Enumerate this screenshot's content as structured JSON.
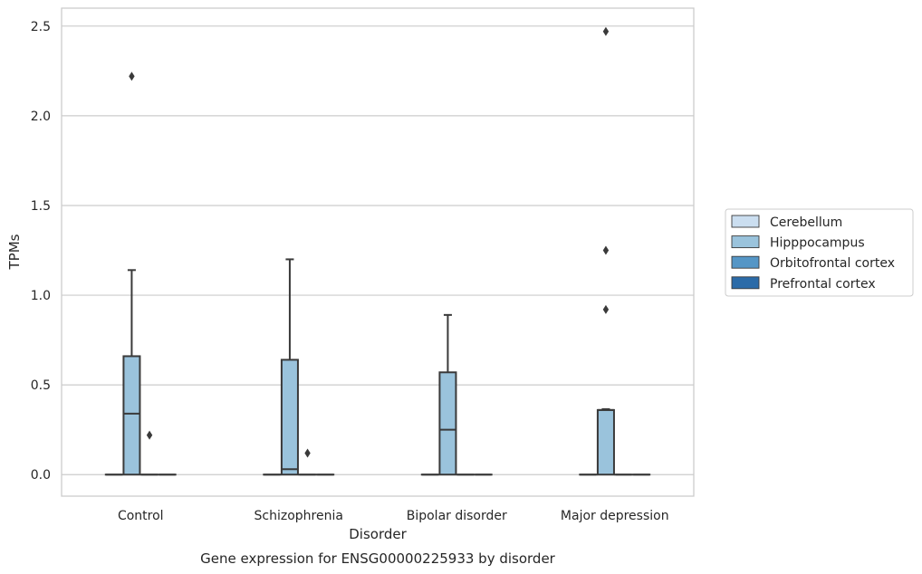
{
  "chart_data": {
    "type": "box",
    "title": "",
    "caption": "Gene expression for ENSG00000225933 by disorder",
    "xlabel": "Disorder",
    "ylabel": "TPMs",
    "categories": [
      "Control",
      "Schizophrenia",
      "Bipolar disorder",
      "Major depression"
    ],
    "ylim": [
      -0.12,
      2.6
    ],
    "yticks": [
      "0.0",
      "0.5",
      "1.0",
      "1.5",
      "2.0",
      "2.5"
    ],
    "grid": true,
    "legend_position": "right",
    "series": [
      {
        "name": "Cerebellum",
        "color": "#cbdef0",
        "boxes": [
          {
            "q1": 0,
            "median": 0,
            "q3": 0,
            "whisker_low": 0,
            "whisker_high": 0,
            "outliers": []
          },
          {
            "q1": 0,
            "median": 0,
            "q3": 0,
            "whisker_low": 0,
            "whisker_high": 0,
            "outliers": []
          },
          {
            "q1": 0,
            "median": 0,
            "q3": 0,
            "whisker_low": 0,
            "whisker_high": 0,
            "outliers": []
          },
          {
            "q1": 0,
            "median": 0,
            "q3": 0,
            "whisker_low": 0,
            "whisker_high": 0,
            "outliers": []
          }
        ]
      },
      {
        "name": "Hipppocampus",
        "color": "#9ac3dc",
        "boxes": [
          {
            "q1": 0,
            "median": 0.34,
            "q3": 0.66,
            "whisker_low": 0,
            "whisker_high": 1.14,
            "outliers": [
              2.22
            ]
          },
          {
            "q1": 0,
            "median": 0.03,
            "q3": 0.64,
            "whisker_low": 0,
            "whisker_high": 1.2,
            "outliers": []
          },
          {
            "q1": 0,
            "median": 0.25,
            "q3": 0.57,
            "whisker_low": 0,
            "whisker_high": 0.89,
            "outliers": []
          },
          {
            "q1": 0,
            "median": 0.36,
            "q3": 0.36,
            "whisker_low": 0,
            "whisker_high": 0.365,
            "outliers": [
              0.92,
              1.25,
              2.47
            ]
          }
        ]
      },
      {
        "name": "Orbitofrontal cortex",
        "color": "#5596c6",
        "boxes": [
          {
            "q1": 0,
            "median": 0,
            "q3": 0,
            "whisker_low": 0,
            "whisker_high": 0,
            "outliers": [
              0.22
            ]
          },
          {
            "q1": 0,
            "median": 0,
            "q3": 0,
            "whisker_low": 0,
            "whisker_high": 0,
            "outliers": [
              0.12
            ]
          },
          {
            "q1": 0,
            "median": 0,
            "q3": 0,
            "whisker_low": 0,
            "whisker_high": 0,
            "outliers": []
          },
          {
            "q1": 0,
            "median": 0,
            "q3": 0,
            "whisker_low": 0,
            "whisker_high": 0,
            "outliers": []
          }
        ]
      },
      {
        "name": "Prefrontal cortex",
        "color": "#2b6ba8",
        "boxes": [
          {
            "q1": 0,
            "median": 0,
            "q3": 0,
            "whisker_low": 0,
            "whisker_high": 0,
            "outliers": []
          },
          {
            "q1": 0,
            "median": 0,
            "q3": 0,
            "whisker_low": 0,
            "whisker_high": 0,
            "outliers": []
          },
          {
            "q1": 0,
            "median": 0,
            "q3": 0,
            "whisker_low": 0,
            "whisker_high": 0,
            "outliers": []
          },
          {
            "q1": 0,
            "median": 0,
            "q3": 0,
            "whisker_low": 0,
            "whisker_high": 0,
            "outliers": []
          }
        ]
      }
    ]
  }
}
